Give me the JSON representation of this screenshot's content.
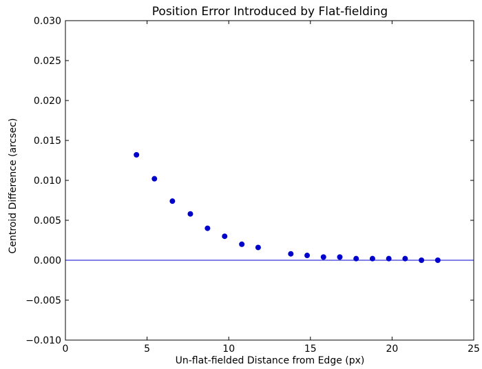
{
  "chart_data": {
    "type": "scatter",
    "title": "Position Error Introduced by Flat-fielding",
    "xlabel": "Un-flat-fielded Distance from Edge (px)",
    "ylabel": "Centroid Difference (arcsec)",
    "xlim": [
      0,
      25
    ],
    "ylim": [
      -0.01,
      0.03
    ],
    "x_ticks": [
      0,
      5,
      10,
      15,
      20,
      25
    ],
    "x_tick_labels": [
      "0",
      "5",
      "10",
      "15",
      "20",
      "25"
    ],
    "y_ticks": [
      -0.01,
      -0.005,
      0.0,
      0.005,
      0.01,
      0.015,
      0.02,
      0.025,
      0.03
    ],
    "y_tick_labels": [
      "−0.010",
      "−0.005",
      "0.000",
      "0.005",
      "0.010",
      "0.015",
      "0.020",
      "0.025",
      "0.030"
    ],
    "grid": false,
    "reference_line": {
      "y": 0,
      "color": "#0000cc"
    },
    "series": [
      {
        "color": "#0000cc",
        "points": [
          {
            "x": 4.35,
            "y": 0.0132
          },
          {
            "x": 5.45,
            "y": 0.0102
          },
          {
            "x": 6.55,
            "y": 0.0074
          },
          {
            "x": 7.65,
            "y": 0.0058
          },
          {
            "x": 8.7,
            "y": 0.004
          },
          {
            "x": 9.75,
            "y": 0.003
          },
          {
            "x": 10.8,
            "y": 0.002
          },
          {
            "x": 11.8,
            "y": 0.0016
          },
          {
            "x": 13.8,
            "y": 0.0008
          },
          {
            "x": 14.8,
            "y": 0.0006
          },
          {
            "x": 15.8,
            "y": 0.0004
          },
          {
            "x": 16.8,
            "y": 0.0004
          },
          {
            "x": 17.8,
            "y": 0.0002
          },
          {
            "x": 18.8,
            "y": 0.0002
          },
          {
            "x": 19.8,
            "y": 0.0002
          },
          {
            "x": 20.8,
            "y": 0.0002
          },
          {
            "x": 21.8,
            "y": 0.0
          },
          {
            "x": 22.8,
            "y": 0.0
          }
        ]
      }
    ]
  }
}
